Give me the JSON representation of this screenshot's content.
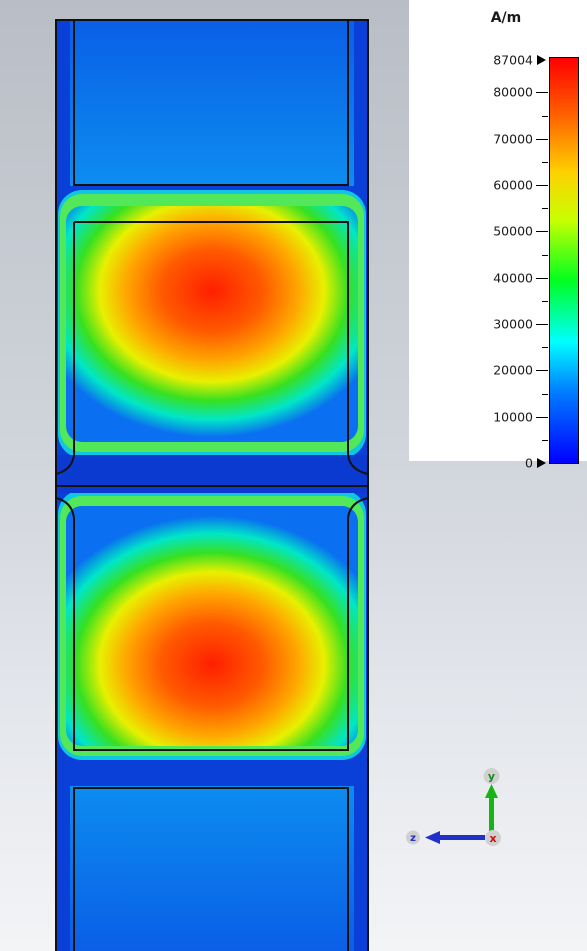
{
  "legend": {
    "unit": "A/m",
    "max_marker": "87004",
    "min_marker": "0",
    "ticks": [
      "80000",
      "70000",
      "60000",
      "50000",
      "40000",
      "30000",
      "20000",
      "10000"
    ]
  },
  "axes": {
    "y_label": "y",
    "x_label": "x",
    "z_label": "z"
  },
  "colors": {
    "field_low": "#0000ff",
    "field_high": "#ff0000",
    "outline": "#111111"
  }
}
